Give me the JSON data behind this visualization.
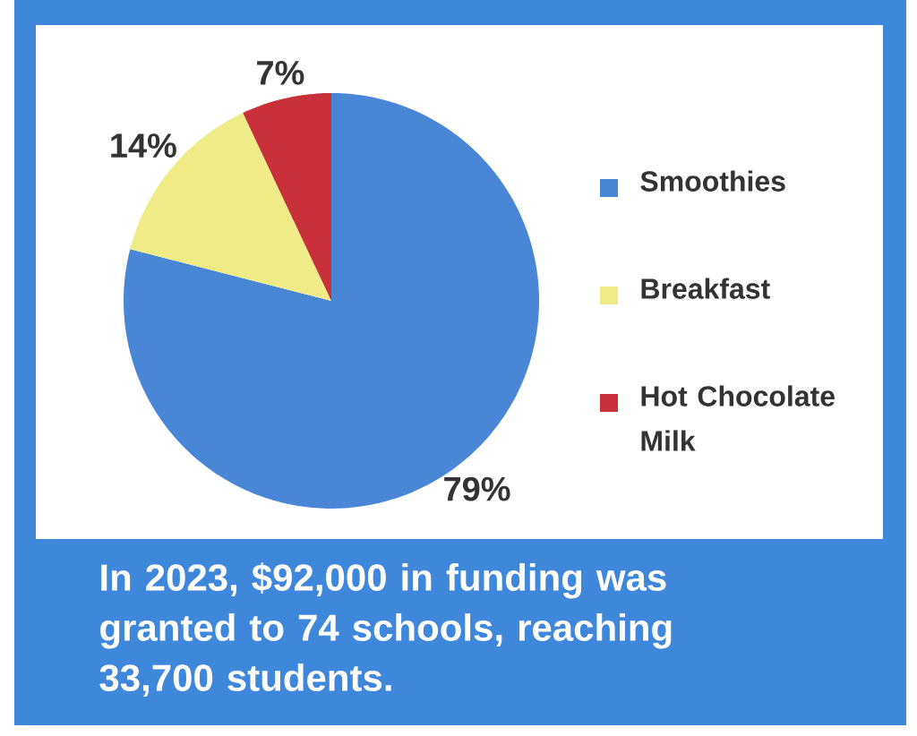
{
  "chart_data": {
    "type": "pie",
    "categories": [
      "Smoothies",
      "Breakfast",
      "Hot Chocolate Milk"
    ],
    "values": [
      79,
      14,
      7
    ],
    "colors": [
      "#4a86d6",
      "#efeb87",
      "#c8313a"
    ],
    "value_labels": [
      "79%",
      "14%",
      "7%"
    ],
    "legend": "right",
    "annotations": [
      "In 2023, $92,000 in funding was granted to 74 schools, reaching 33,700 students."
    ]
  }
}
